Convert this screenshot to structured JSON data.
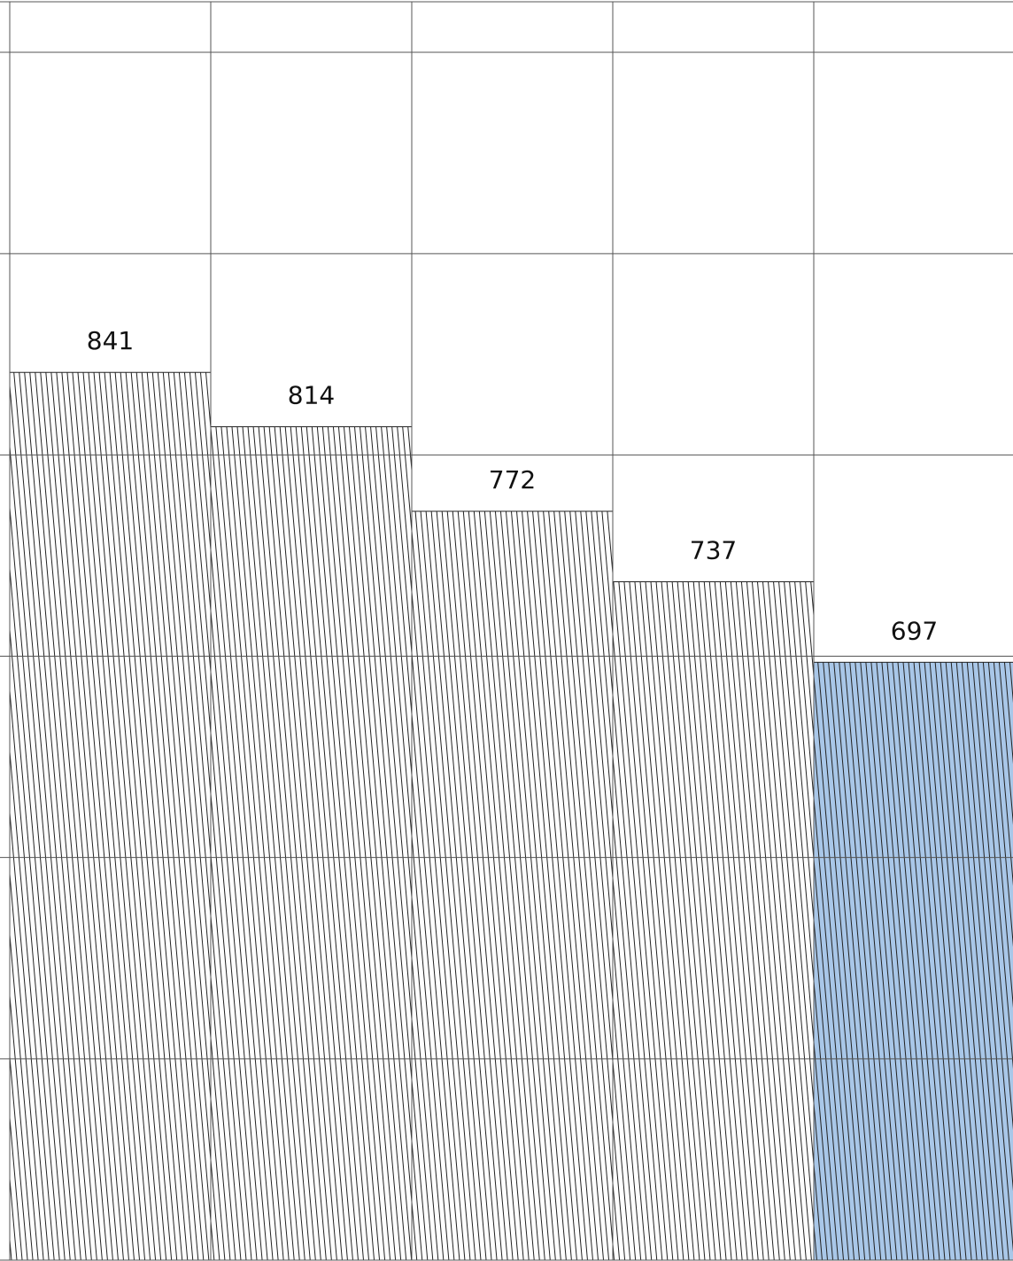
{
  "chart_data": {
    "type": "bar",
    "categories": [
      null,
      null,
      null,
      null,
      null
    ],
    "values": [
      841,
      814,
      772,
      737,
      697
    ],
    "colors": [
      "#ffffff",
      "#ffffff",
      "#ffffff",
      "#ffffff",
      "#a9c7e8"
    ],
    "ylim": [
      400,
      1026
    ],
    "yticks": [
      400,
      500,
      600,
      700,
      800,
      900,
      1000
    ],
    "grid": true
  }
}
